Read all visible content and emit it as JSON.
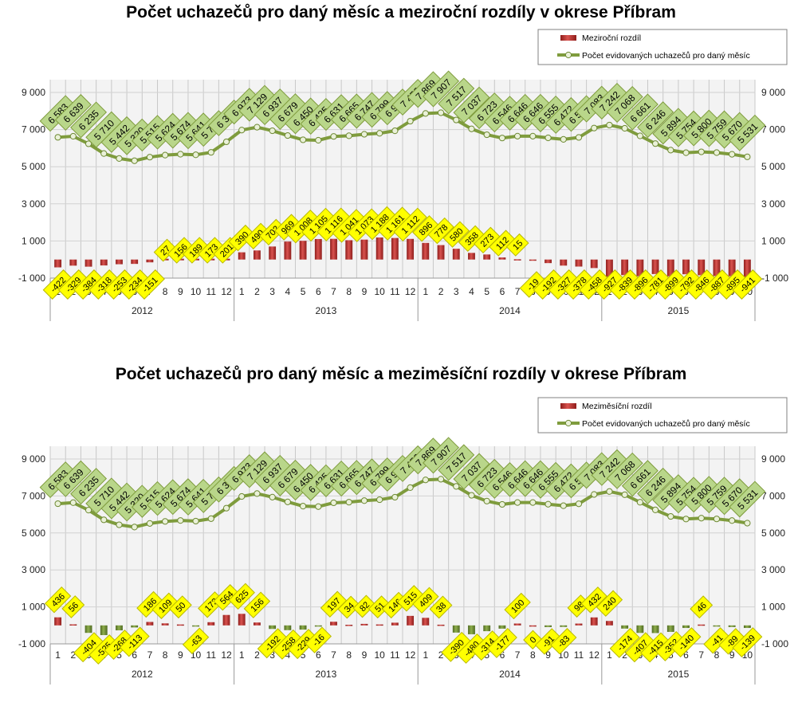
{
  "chart_data": [
    {
      "type": "bar",
      "title": "Počet uchazečů pro daný měsíc a meziroční rozdíly v okrese Příbram",
      "months": [
        "1",
        "2",
        "3",
        "4",
        "5",
        "6",
        "7",
        "8",
        "9",
        "10",
        "11",
        "12",
        "1",
        "2",
        "3",
        "4",
        "5",
        "6",
        "7",
        "8",
        "9",
        "10",
        "11",
        "12",
        "1",
        "2",
        "3",
        "4",
        "5",
        "6",
        "7",
        "8",
        "9",
        "10",
        "11",
        "12",
        "1",
        "2",
        "3",
        "4",
        "5",
        "6",
        "7",
        "8",
        "9",
        "10"
      ],
      "years": [
        "2012",
        "2013",
        "2014",
        "2015"
      ],
      "y_ticks": [
        "9 000",
        "7 000",
        "5 000",
        "3 000",
        "1 000",
        "-1 000"
      ],
      "ylim": [
        -1000,
        9000
      ],
      "legend_position": "top-right",
      "series": [
        {
          "name": "Meziroční rozdíl",
          "type": "bar",
          "color": "#c0302f",
          "values": [
            -422,
            -329,
            -384,
            -318,
            -253,
            -234,
            -151,
            null,
            null,
            null,
            null,
            null,
            390,
            490,
            702,
            969,
            1008,
            1105,
            1116,
            1041,
            1073,
            1188,
            1161,
            1112,
            896,
            778,
            580,
            358,
            273,
            112,
            15,
            -19,
            -192,
            -327,
            -378,
            -458,
            -927,
            -839,
            -896,
            -781,
            -899,
            -792,
            -846,
            -887,
            -895,
            -941
          ],
          "labels": [
            "-422",
            "-329",
            "-384",
            "-318",
            "-253",
            "-234",
            "-151",
            "27",
            "156",
            "189",
            "173",
            "201",
            "390",
            "490",
            "702",
            "969",
            "1 008",
            "1 105",
            "1 116",
            "1 041",
            "1 073",
            "1 188",
            "1 161",
            "1 112",
            "896",
            "778",
            "580",
            "358",
            "273",
            "112",
            "15",
            "-19",
            "-192",
            "-327",
            "-378",
            "-458",
            "-927",
            "-839",
            "-896",
            "-781",
            "-899",
            "-792",
            "-846",
            "-887",
            "-895",
            "-941"
          ]
        },
        {
          "name": "Počet evidovaných uchazečů pro daný měsíc",
          "type": "line",
          "color": "#7f9c3d",
          "values": [
            6583,
            6639,
            6235,
            5710,
            5442,
            5320,
            5515,
            5624,
            5674,
            5641,
            5773,
            6341,
            6973,
            7129,
            6937,
            6679,
            6450,
            6425,
            6631,
            6665,
            6747,
            6799,
            6934,
            7453,
            7869,
            7907,
            7517,
            7037,
            6723,
            6546,
            6646,
            6646,
            6555,
            6472,
            6577,
            7083,
            7242,
            7068,
            6661,
            6246,
            5894,
            5754,
            5800,
            5759,
            5670,
            5531
          ],
          "labels": [
            "6 583",
            "6 639",
            "6 235",
            "5 710",
            "5 442",
            "5 320",
            "5 515",
            "5 624",
            "5 674",
            "5 641",
            "5 773",
            "6 341",
            "6 973",
            "7 129",
            "6 937",
            "6 679",
            "6 450",
            "6 425",
            "6 631",
            "6 665",
            "6 747",
            "6 799",
            "6 934",
            "7 453",
            "7 869",
            "7 907",
            "7 517",
            "7 037",
            "6 723",
            "6 546",
            "6 646",
            "6 646",
            "6 555",
            "6 472",
            "6 577",
            "7 083",
            "7 242",
            "7 068",
            "6 661",
            "6 246",
            "5 894",
            "5 754",
            "5 800",
            "5 759",
            "5 670",
            "5 531"
          ]
        }
      ]
    },
    {
      "type": "bar",
      "title": "Počet uchazečů pro daný měsíc a meziměsíční rozdíly v okrese Příbram",
      "months": [
        "1",
        "2",
        "3",
        "4",
        "5",
        "6",
        "7",
        "8",
        "9",
        "10",
        "11",
        "12",
        "1",
        "2",
        "3",
        "4",
        "5",
        "6",
        "7",
        "8",
        "9",
        "10",
        "11",
        "12",
        "1",
        "2",
        "3",
        "4",
        "5",
        "6",
        "7",
        "8",
        "9",
        "10",
        "11",
        "12",
        "1",
        "2",
        "3",
        "4",
        "5",
        "6",
        "7",
        "8",
        "9",
        "10"
      ],
      "years": [
        "2012",
        "2013",
        "2014",
        "2015"
      ],
      "y_ticks": [
        "9 000",
        "7 000",
        "5 000",
        "3 000",
        "1 000",
        "-1 000"
      ],
      "ylim": [
        -1000,
        9000
      ],
      "legend_position": "top-right",
      "series": [
        {
          "name": "Meziměsíční rozdíl",
          "type": "bar",
          "color": "#c0302f",
          "values": [
            436,
            56,
            -404,
            -525,
            -268,
            -113,
            186,
            109,
            50,
            -63,
            173,
            564,
            625,
            156,
            -192,
            -258,
            -229,
            -16,
            197,
            34,
            82,
            51,
            146,
            515,
            409,
            38,
            -390,
            -480,
            -314,
            -177,
            100,
            0,
            -91,
            -83,
            98,
            432,
            240,
            -174,
            -407,
            -415,
            -352,
            -140,
            46,
            -41,
            -89,
            -139
          ],
          "labels": [
            "436",
            "56",
            "-404",
            "-525",
            "-268",
            "-113",
            "186",
            "109",
            "50",
            "-63",
            "173",
            "564",
            "625",
            "156",
            "-192",
            "-258",
            "-229",
            "-16",
            "197",
            "34",
            "82",
            "51",
            "146",
            "515",
            "409",
            "38",
            "-390",
            "-480",
            "-314",
            "-177",
            "100",
            "0",
            "-91",
            "-83",
            "98",
            "432",
            "240",
            "-174",
            "-407",
            "-415",
            "-352",
            "-140",
            "46",
            "-41",
            "-89",
            "-139"
          ]
        },
        {
          "name": "Počet evidovaných uchazečů pro daný měsíc",
          "type": "line",
          "color": "#7f9c3d",
          "values": [
            6583,
            6639,
            6235,
            5710,
            5442,
            5320,
            5515,
            5624,
            5674,
            5641,
            5773,
            6341,
            6973,
            7129,
            6937,
            6679,
            6450,
            6425,
            6631,
            6665,
            6747,
            6799,
            6934,
            7453,
            7869,
            7907,
            7517,
            7037,
            6723,
            6546,
            6646,
            6646,
            6555,
            6472,
            6577,
            7083,
            7242,
            7068,
            6661,
            6246,
            5894,
            5754,
            5800,
            5759,
            5670,
            5531
          ],
          "labels": [
            "6 583",
            "6 639",
            "6 235",
            "5 710",
            "5 442",
            "5 320",
            "5 515",
            "5 624",
            "5 674",
            "5 641",
            "5 773",
            "6 341",
            "6 973",
            "7 129",
            "6 937",
            "6 679",
            "6 450",
            "6 425",
            "6 631",
            "6 665",
            "6 747",
            "6 799",
            "6 934",
            "7 453",
            "7 869",
            "7 907",
            "7 517",
            "7 037",
            "6 723",
            "6 546",
            "6 646",
            "6 646",
            "6 555",
            "6 472",
            "6 577",
            "7 083",
            "7 242",
            "7 068",
            "6 661",
            "6 246",
            "5 894",
            "5 754",
            "5 800",
            "5 759",
            "5 670",
            "5 531"
          ]
        }
      ]
    }
  ]
}
